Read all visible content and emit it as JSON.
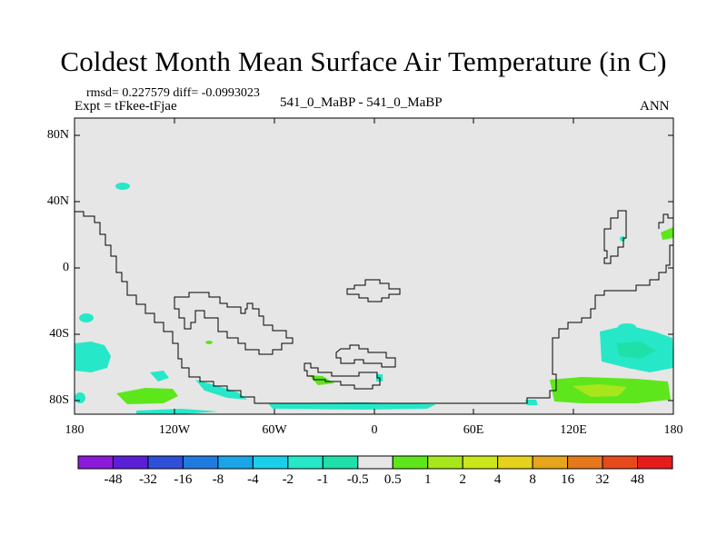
{
  "title": "Coldest Month Mean Surface Air Temperature (in C)",
  "stats_line": "rmsd= 0.227579 diff= -0.0993023",
  "expt_line": "Expt = tFkee-tFjae",
  "center_label": "541_0_MaBP - 541_0_MaBP",
  "period_label": "ANN",
  "y_axis": {
    "ticks": [
      "80N",
      "40N",
      "0",
      "40S",
      "80S"
    ]
  },
  "x_axis": {
    "ticks": [
      "180",
      "120W",
      "60W",
      "0",
      "60E",
      "120E",
      "180"
    ]
  },
  "colorbar": {
    "labels": [
      "-48",
      "-32",
      "-16",
      "-8",
      "-4",
      "-2",
      "-1",
      "-0.5",
      "0.5",
      "1",
      "2",
      "4",
      "8",
      "16",
      "32",
      "48"
    ],
    "colors": [
      "#8c1ad9",
      "#5a1fd6",
      "#2f4fd9",
      "#1f7be0",
      "#1aa5e8",
      "#1ccfe8",
      "#26e8c8",
      "#1fe0a8",
      "#e6e6e6",
      "#5ee61c",
      "#a8e61c",
      "#cce61c",
      "#e6d21c",
      "#e6a51c",
      "#e6781c",
      "#e64a1c",
      "#e61c1c"
    ]
  },
  "map_colors": {
    "background": "#e6e6e6",
    "cyan": "#26e8c8",
    "teal": "#1fe0a8",
    "green": "#5ee61c",
    "yellowgreen": "#a8e61c"
  }
}
